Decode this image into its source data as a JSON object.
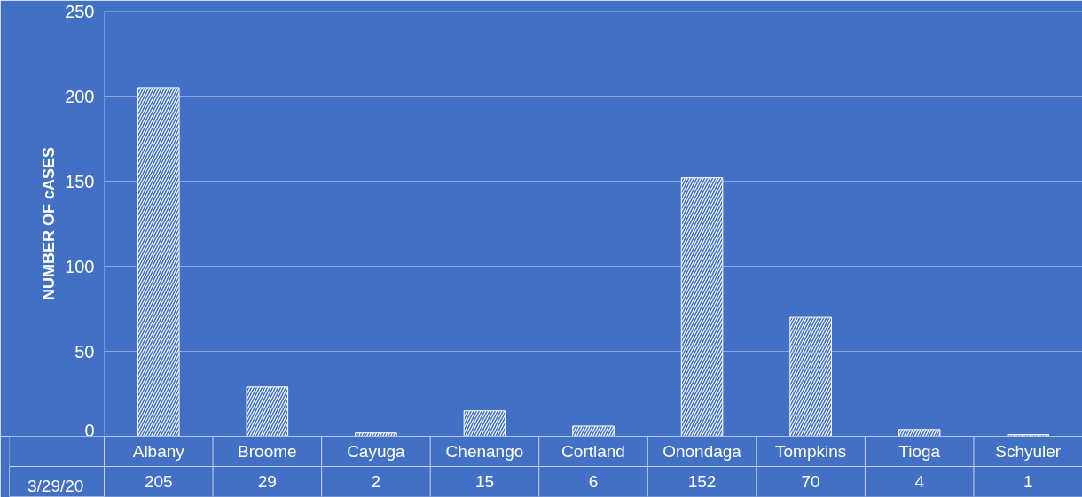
{
  "chart_data": {
    "type": "bar",
    "ylabel": "NUMBER OF cASES",
    "categories": [
      "Albany",
      "Broome",
      "Cayuga",
      "Chenango",
      "Cortland",
      "Onondaga",
      "Tompkins",
      "Tioga",
      "Schyuler"
    ],
    "series": [
      {
        "name": "3/29/20",
        "color": "#ffffff",
        "values": [
          205,
          29,
          2,
          15,
          6,
          152,
          70,
          4,
          1
        ]
      }
    ],
    "ylim": [
      0,
      250
    ],
    "yticks": [
      0,
      50,
      100,
      150,
      200,
      250
    ],
    "grid": "y",
    "legend": "bottom",
    "data_labels": true
  }
}
